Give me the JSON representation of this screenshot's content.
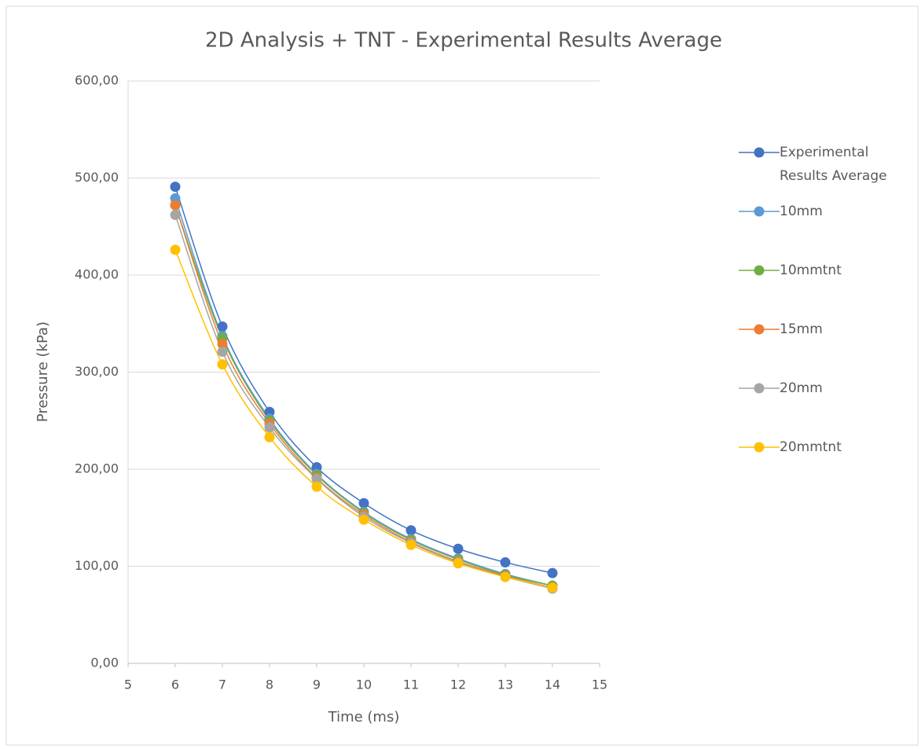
{
  "chart_data": {
    "type": "line",
    "title": "2D Analysis + TNT - Experimental Results Average",
    "xlabel": "Time (ms)",
    "ylabel": "Pressure (kPa)",
    "x": [
      6,
      7,
      8,
      9,
      10,
      11,
      12,
      13,
      14
    ],
    "series": [
      {
        "name": "Experimental Results Average",
        "color": "#4472c4",
        "values": [
          491,
          347,
          259,
          202,
          165,
          137,
          118,
          104,
          93
        ]
      },
      {
        "name": "10mm",
        "color": "#5b9bd5",
        "values": [
          479,
          337,
          252,
          195,
          156,
          128,
          108,
          92,
          80
        ]
      },
      {
        "name": "10mmtnt",
        "color": "#70ad47",
        "values": [
          472,
          335,
          250,
          194,
          155,
          127,
          107,
          91,
          80
        ]
      },
      {
        "name": "15mm",
        "color": "#ed7d31",
        "values": [
          472,
          329,
          247,
          191,
          153,
          125,
          105,
          90,
          78
        ]
      },
      {
        "name": "20mm",
        "color": "#a5a5a5",
        "values": [
          462,
          321,
          243,
          190,
          151,
          124,
          104,
          89,
          77
        ]
      },
      {
        "name": "20mmtnt",
        "color": "#ffc000",
        "values": [
          426,
          308,
          233,
          182,
          148,
          122,
          103,
          89,
          78
        ]
      }
    ],
    "xlim": [
      5,
      15
    ],
    "xticks": [
      5,
      6,
      7,
      8,
      9,
      10,
      11,
      12,
      13,
      14,
      15
    ],
    "ylim": [
      0,
      600
    ],
    "yticks": [
      {
        "value": 0,
        "label": "0,00"
      },
      {
        "value": 100,
        "label": "100,00"
      },
      {
        "value": 200,
        "label": "200,00"
      },
      {
        "value": 300,
        "label": "300,00"
      },
      {
        "value": 400,
        "label": "400,00"
      },
      {
        "value": 500,
        "label": "500,00"
      },
      {
        "value": 600,
        "label": "600,00"
      }
    ],
    "grid": true,
    "smooth": true,
    "legend": "right"
  }
}
